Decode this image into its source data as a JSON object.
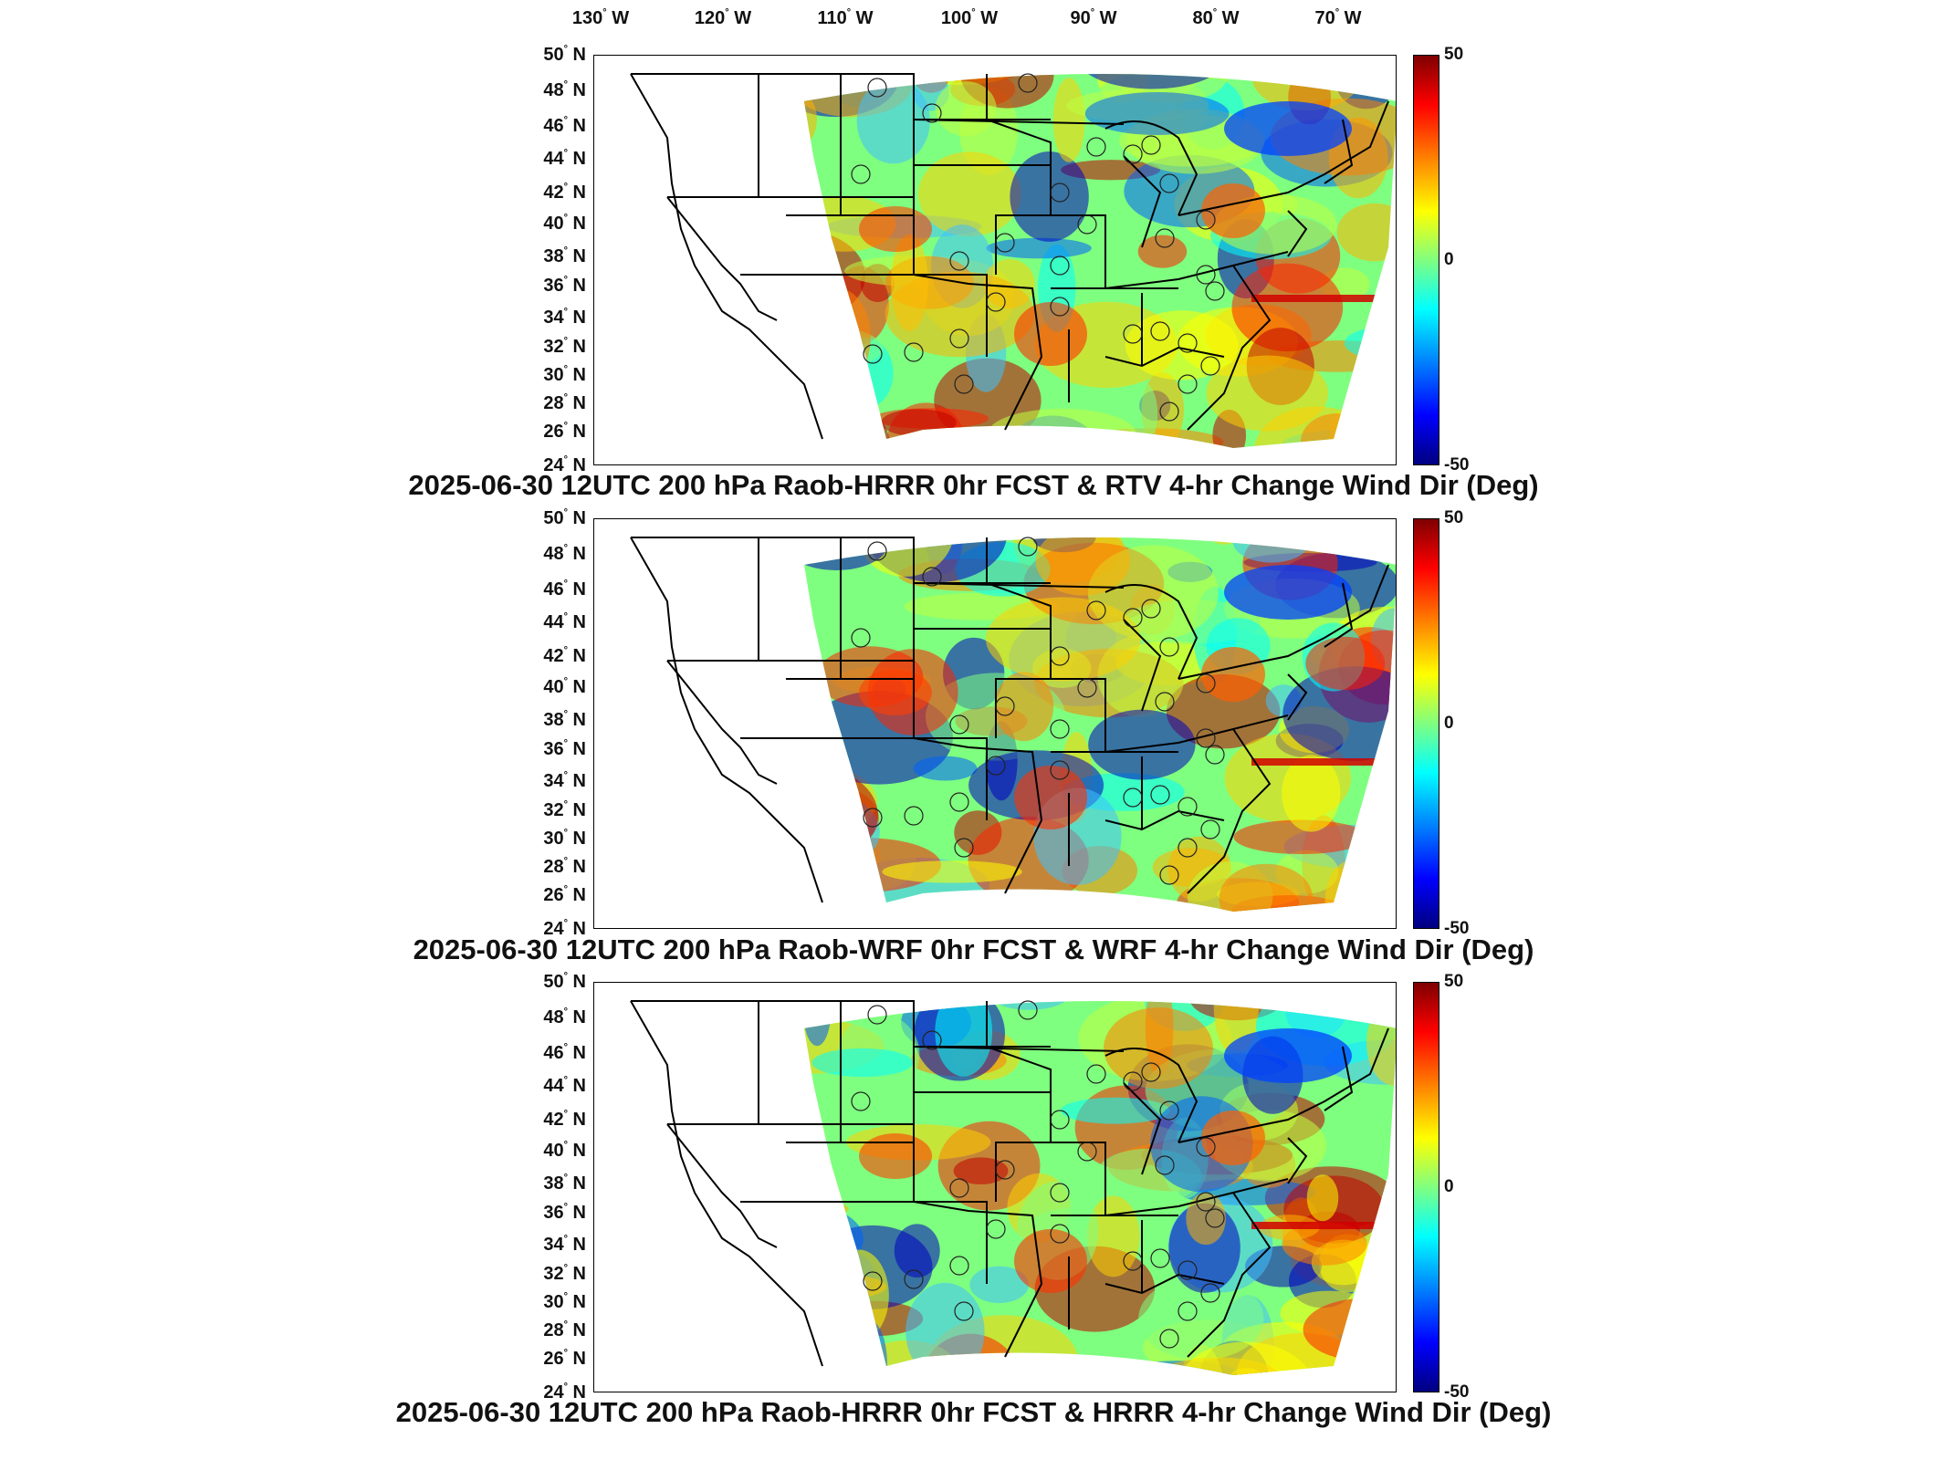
{
  "lon_labels": [
    "130",
    "120",
    "110",
    "100",
    "90",
    "80",
    "70"
  ],
  "lon_suffix": "W",
  "lat_labels": [
    "50",
    "48",
    "46",
    "44",
    "42",
    "40",
    "38",
    "36",
    "34",
    "32",
    "30",
    "28",
    "26",
    "24"
  ],
  "lat_suffix": "N",
  "colorbar": {
    "max": "50",
    "mid": "0",
    "min": "-50"
  },
  "panels": [
    {
      "title": "2025-06-30 12UTC 200 hPa Raob-HRRR 0hr FCST & RTV 4-hr Change Wind Dir (Deg)"
    },
    {
      "title": "2025-06-30 12UTC 200 hPa Raob-WRF 0hr FCST & WRF 4-hr Change Wind Dir (Deg)"
    },
    {
      "title": "2025-06-30 12UTC 200 hPa Raob-HRRR 0hr FCST & HRRR 4-hr Change Wind Dir (Deg)"
    }
  ],
  "colors": {
    "positive_max": "#7f0000",
    "zero": "#80ff80",
    "negative_max": "#00007f"
  }
}
